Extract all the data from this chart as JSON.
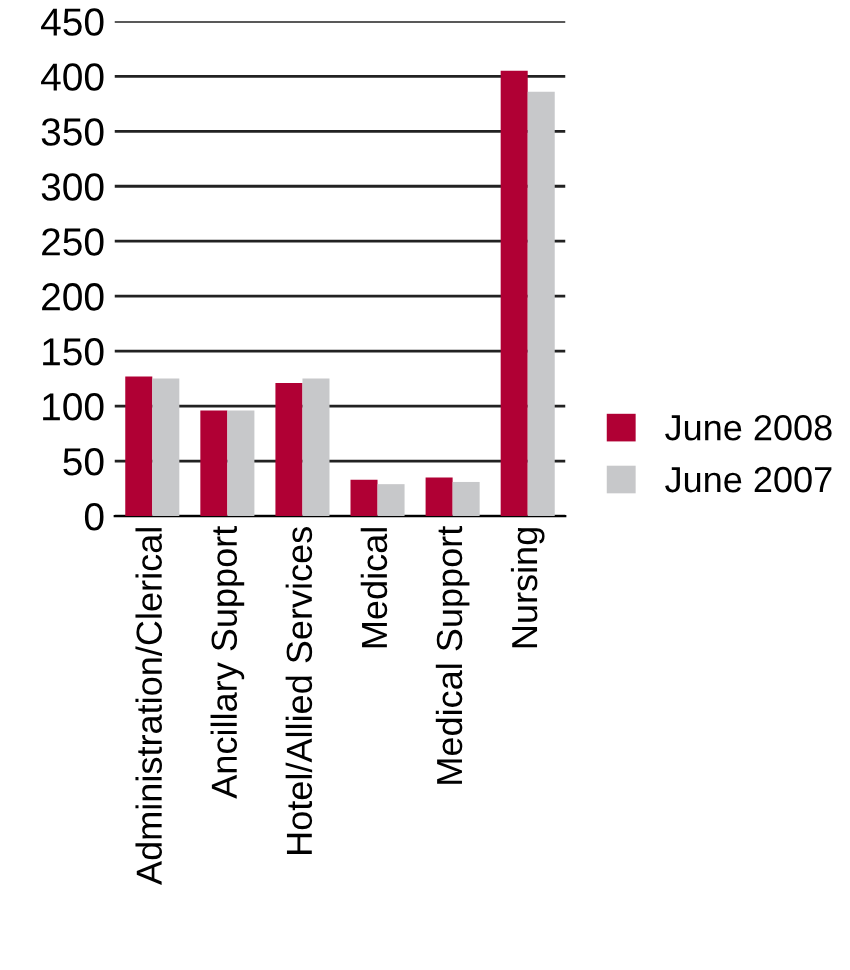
{
  "chart_data": {
    "type": "bar",
    "categories": [
      "Administration/Clerical",
      "Ancillary Support",
      "Hotel/Allied Services",
      "Medical",
      "Medical Support",
      "Nursing"
    ],
    "series": [
      {
        "name": "June 2008",
        "color": "#b00034",
        "values": [
          127,
          96,
          121,
          33,
          35,
          405
        ]
      },
      {
        "name": "June 2007",
        "color": "#c7c8ca",
        "values": [
          125,
          96,
          125,
          29,
          31,
          386
        ]
      }
    ],
    "ylim": [
      0,
      450
    ],
    "yticks": [
      0,
      50,
      100,
      150,
      200,
      250,
      300,
      350,
      400,
      450
    ],
    "grid": "y",
    "legend": "right"
  }
}
